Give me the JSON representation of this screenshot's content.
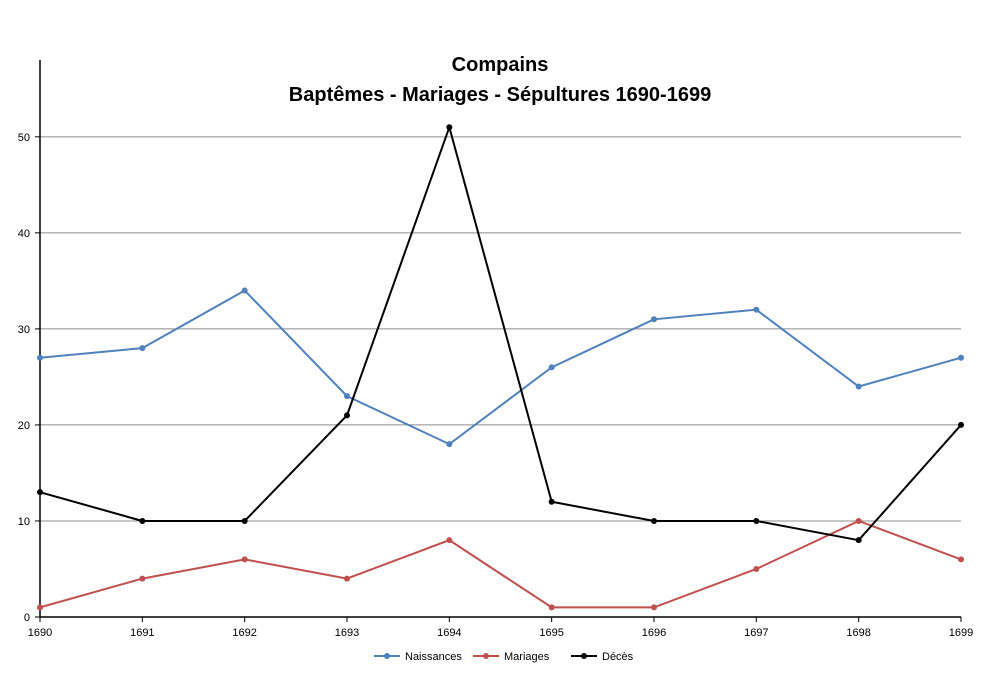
{
  "chart_data": {
    "type": "line",
    "title": "Compains",
    "subtitle": "Baptêmes - Mariages - Sépultures 1690-1699",
    "x": [
      "1690",
      "1691",
      "1692",
      "1693",
      "1694",
      "1695",
      "1696",
      "1697",
      "1698",
      "1699"
    ],
    "ylim": [
      0,
      58
    ],
    "yticks": [
      0,
      10,
      20,
      30,
      40,
      50
    ],
    "grid": true,
    "legend_position": "bottom",
    "series": [
      {
        "name": "Naissances",
        "color": "#4f81bd",
        "values": [
          27,
          28,
          34,
          23,
          18,
          26,
          31,
          32,
          24,
          27
        ]
      },
      {
        "name": "Mariages",
        "color": "#c0504d",
        "values": [
          1,
          4,
          6,
          4,
          8,
          1,
          1,
          5,
          10,
          6
        ]
      },
      {
        "name": "Décès",
        "color": "#000000",
        "values": [
          13,
          10,
          10,
          21,
          51,
          12,
          10,
          10,
          8,
          20
        ]
      }
    ]
  }
}
